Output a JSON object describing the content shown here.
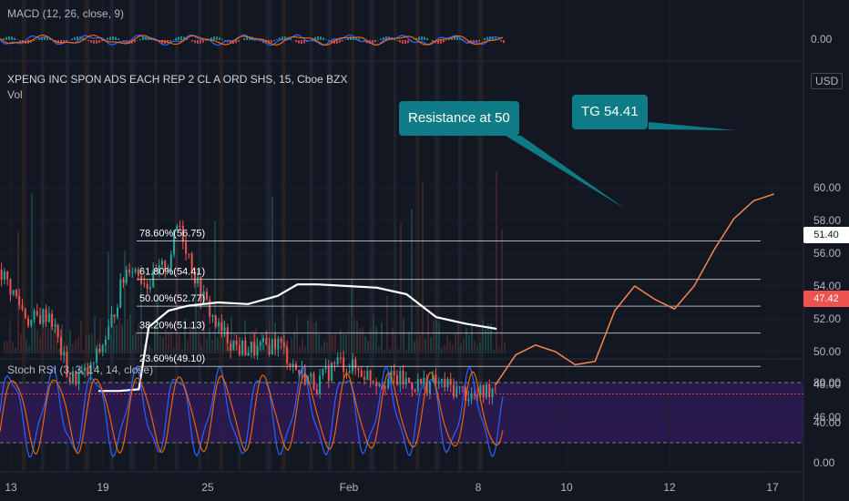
{
  "colors": {
    "background": "#131722",
    "grid": "#1e222d",
    "text": "#b2b5be",
    "price_up": "#26a69a",
    "price_down": "#ef5350",
    "projection": "#f7874a",
    "average_line": "#ffffff",
    "fib_line": "#d1d4dc",
    "callout_bg": "#0f7b86",
    "stoch_band": "#2e1a52",
    "stoch_k": "#2962ff",
    "stoch_d": "#ff6d00",
    "last_price_tag": "#ef5350",
    "level_tag": "#ffffff"
  },
  "macd": {
    "label": "MACD (12, 26, close, 9)",
    "axis_value": "0.00"
  },
  "main": {
    "title": "XPENG INC SPON ADS EACH REP 2 CL A ORD SHS, 15, Cboe BZX",
    "volume_label": "Vol",
    "currency": "USD",
    "callout_resistance": "Resistance at 50",
    "callout_target": "TG 54.41",
    "last_price_tag": "47.42",
    "level_tag": "51.40"
  },
  "stoch": {
    "label": "Stoch RSI (3, 3, 14, 14, close)",
    "ticks": [
      "80.00",
      "40.00",
      "0.00"
    ]
  },
  "chart_data": {
    "type": "line",
    "title": "XPENG INC SPON ADS EACH REP 2 CL A ORD SHS, 15, Cboe BZX",
    "ylabel": "USD",
    "ylim": [
      45,
      60.5
    ],
    "y_ticks": [
      "60.00",
      "58.00",
      "56.00",
      "54.00",
      "52.00",
      "50.00",
      "48.00",
      "46.00"
    ],
    "x_ticks": [
      "13",
      "19",
      "25",
      "Feb",
      "8",
      "10",
      "12",
      "17"
    ],
    "fib_levels": [
      {
        "label": "78.60%(56.75)",
        "value": 56.75
      },
      {
        "label": "61.80%(54.41)",
        "value": 54.41
      },
      {
        "label": "50.00%(52.77)",
        "value": 52.77
      },
      {
        "label": "38.20%(51.13)",
        "value": 51.13
      },
      {
        "label": "23.60%(49.10)",
        "value": 49.1
      }
    ],
    "last_price": 47.42,
    "level_marker": 51.4,
    "series": [
      {
        "name": "price",
        "x": [
          0,
          6,
          10,
          14,
          18,
          22,
          24,
          26,
          30,
          34,
          36,
          40,
          44,
          48,
          52,
          56,
          60,
          64,
          68,
          72,
          76,
          80,
          84,
          88,
          92,
          96,
          100
        ],
        "values": [
          55.0,
          51.8,
          52.4,
          48.3,
          48.7,
          51.3,
          53.6,
          55.4,
          54.1,
          55.5,
          58.0,
          53.9,
          51.4,
          50.2,
          50.1,
          50.6,
          48.8,
          48.0,
          49.4,
          48.9,
          48.3,
          48.3,
          48.0,
          48.1,
          47.7,
          47.2,
          48.0
        ]
      },
      {
        "name": "average",
        "x": [
          20,
          24,
          28,
          30,
          34,
          38,
          44,
          50,
          56,
          60,
          64,
          70,
          76,
          82,
          88,
          94,
          100
        ],
        "values": [
          47.6,
          47.6,
          47.7,
          51.5,
          52.5,
          52.8,
          53.0,
          52.9,
          53.4,
          54.1,
          54.1,
          54.0,
          53.9,
          53.5,
          52.1,
          51.7,
          51.4
        ]
      },
      {
        "name": "projection",
        "x": [
          100,
          104,
          108,
          112,
          116,
          120,
          124,
          128,
          132,
          136,
          140,
          144,
          148,
          152,
          156
        ],
        "values": [
          48.0,
          49.8,
          50.4,
          50.0,
          49.2,
          49.4,
          52.5,
          54.0,
          53.2,
          52.6,
          54.0,
          56.2,
          58.1,
          59.2,
          59.6
        ]
      }
    ],
    "grid": true
  }
}
